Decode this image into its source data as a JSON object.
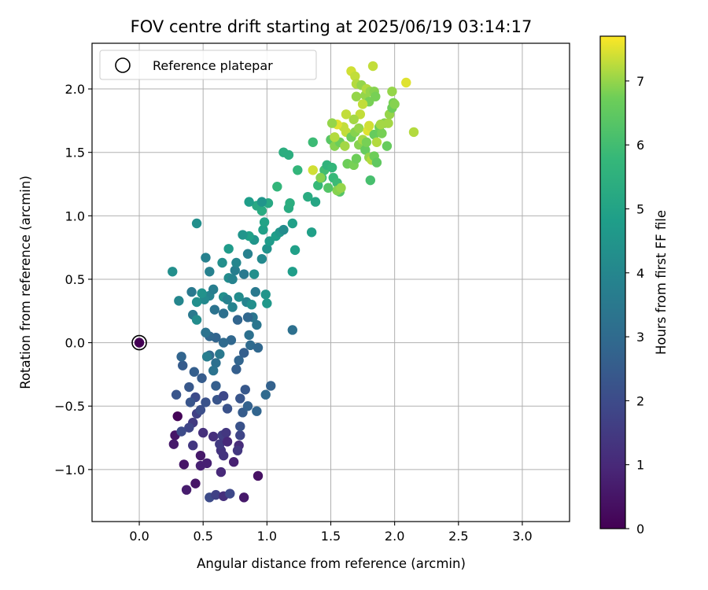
{
  "chart_data": {
    "type": "scatter",
    "title": "FOV centre drift starting at 2025/06/19 03:14:17",
    "xlabel": "Angular distance from reference (arcmin)",
    "ylabel": "Rotation from reference (arcmin)",
    "xlim": [
      -0.37,
      3.37
    ],
    "ylim": [
      -1.41,
      2.36
    ],
    "xticks": [
      0.0,
      0.5,
      1.0,
      1.5,
      2.0,
      2.5,
      3.0
    ],
    "xtick_labels": [
      "0.0",
      "0.5",
      "1.0",
      "1.5",
      "2.0",
      "2.5",
      "3.0"
    ],
    "yticks": [
      -1.0,
      -0.5,
      0.0,
      0.5,
      1.0,
      1.5,
      2.0
    ],
    "ytick_labels": [
      "−1.0",
      "−0.5",
      "0.0",
      "0.5",
      "1.0",
      "1.5",
      "2.0"
    ],
    "grid": true,
    "legend": {
      "position": "top-left",
      "entries": [
        {
          "label": "Reference platepar",
          "marker": "open-circle"
        }
      ]
    },
    "reference_point": {
      "x": 0.0,
      "y": 0.0,
      "c": 0.0
    },
    "colorbar": {
      "label": "Hours from first FF file",
      "colormap": "viridis",
      "range": [
        0,
        7.7
      ],
      "ticks": [
        0,
        1,
        2,
        3,
        4,
        5,
        6,
        7
      ],
      "tick_labels": [
        "0",
        "1",
        "2",
        "3",
        "4",
        "5",
        "6",
        "7"
      ]
    },
    "points": [
      [
        0.3,
        -0.58,
        0.1
      ],
      [
        0.28,
        -0.73,
        0.5
      ],
      [
        0.27,
        -0.8,
        0.6
      ],
      [
        0.35,
        -0.96,
        0.5
      ],
      [
        0.37,
        -1.16,
        0.7
      ],
      [
        0.44,
        -1.11,
        0.5
      ],
      [
        0.48,
        -0.97,
        0.8
      ],
      [
        0.48,
        -0.89,
        0.6
      ],
      [
        0.53,
        -0.95,
        0.8
      ],
      [
        0.55,
        -1.22,
        2.0
      ],
      [
        0.6,
        -1.2,
        1.7
      ],
      [
        0.64,
        -1.02,
        1.0
      ],
      [
        0.66,
        -1.21,
        1.2
      ],
      [
        0.71,
        -1.19,
        1.9
      ],
      [
        0.82,
        -1.22,
        0.6
      ],
      [
        0.93,
        -1.05,
        0.4
      ],
      [
        0.74,
        -0.94,
        0.8
      ],
      [
        0.78,
        -0.81,
        1.1
      ],
      [
        0.64,
        -0.85,
        1.3
      ],
      [
        0.58,
        -0.74,
        1.2
      ],
      [
        0.5,
        -0.71,
        1.2
      ],
      [
        0.42,
        -0.63,
        1.5
      ],
      [
        0.45,
        -0.56,
        1.7
      ],
      [
        0.39,
        -0.67,
        1.8
      ],
      [
        0.33,
        -0.7,
        2.0
      ],
      [
        0.42,
        -0.81,
        1.4
      ],
      [
        0.44,
        -0.43,
        2.0
      ],
      [
        0.48,
        -0.53,
        2.1
      ],
      [
        0.52,
        -0.47,
        2.2
      ],
      [
        0.4,
        -0.47,
        2.3
      ],
      [
        0.29,
        -0.41,
        2.3
      ],
      [
        0.39,
        -0.35,
        2.4
      ],
      [
        0.43,
        -0.23,
        2.6
      ],
      [
        0.34,
        -0.18,
        2.5
      ],
      [
        0.33,
        -0.11,
        2.8
      ],
      [
        0.49,
        -0.28,
        2.5
      ],
      [
        0.6,
        -0.34,
        2.6
      ],
      [
        0.61,
        -0.45,
        2.3
      ],
      [
        0.66,
        -0.42,
        1.9
      ],
      [
        0.69,
        -0.52,
        2.2
      ],
      [
        0.65,
        -0.73,
        1.6
      ],
      [
        0.63,
        -0.8,
        1.5
      ],
      [
        0.68,
        -0.71,
        1.4
      ],
      [
        0.66,
        -0.89,
        1.3
      ],
      [
        0.69,
        -0.78,
        1.0
      ],
      [
        0.77,
        -0.85,
        1.4
      ],
      [
        0.79,
        -0.73,
        1.8
      ],
      [
        0.79,
        -0.66,
        2.2
      ],
      [
        0.81,
        -0.55,
        2.5
      ],
      [
        0.83,
        -0.37,
        2.4
      ],
      [
        0.85,
        -0.5,
        2.7
      ],
      [
        0.92,
        -0.54,
        2.8
      ],
      [
        0.99,
        -0.41,
        3.0
      ],
      [
        1.03,
        -0.34,
        2.7
      ],
      [
        0.79,
        -0.44,
        2.3
      ],
      [
        0.76,
        -0.21,
        2.6
      ],
      [
        0.78,
        -0.14,
        2.8
      ],
      [
        0.82,
        -0.08,
        2.6
      ],
      [
        0.87,
        -0.02,
        3.0
      ],
      [
        0.93,
        -0.04,
        2.9
      ],
      [
        0.86,
        0.06,
        3.2
      ],
      [
        0.92,
        0.14,
        3.4
      ],
      [
        0.89,
        0.2,
        3.4
      ],
      [
        0.85,
        0.2,
        2.9
      ],
      [
        0.77,
        0.18,
        2.8
      ],
      [
        0.72,
        0.02,
        2.9
      ],
      [
        0.66,
        0.0,
        3.0
      ],
      [
        0.6,
        0.04,
        2.8
      ],
      [
        0.55,
        0.05,
        2.9
      ],
      [
        0.52,
        0.08,
        3.3
      ],
      [
        0.55,
        -0.1,
        3.0
      ],
      [
        0.6,
        -0.16,
        3.2
      ],
      [
        0.58,
        -0.22,
        3.3
      ],
      [
        0.53,
        -0.11,
        3.7
      ],
      [
        0.63,
        -0.09,
        3.5
      ],
      [
        0.66,
        0.23,
        3.2
      ],
      [
        0.59,
        0.26,
        3.3
      ],
      [
        0.55,
        0.37,
        3.9
      ],
      [
        0.51,
        0.34,
        4.1
      ],
      [
        0.49,
        0.39,
        4.4
      ],
      [
        0.45,
        0.32,
        4.3
      ],
      [
        0.42,
        0.22,
        3.5
      ],
      [
        0.45,
        0.18,
        4.2
      ],
      [
        0.41,
        0.4,
        3.5
      ],
      [
        0.31,
        0.33,
        4.0
      ],
      [
        0.26,
        0.56,
        4.3
      ],
      [
        0.55,
        0.56,
        3.8
      ],
      [
        0.58,
        0.42,
        3.7
      ],
      [
        0.66,
        0.36,
        4.3
      ],
      [
        0.69,
        0.34,
        3.8
      ],
      [
        0.73,
        0.28,
        3.9
      ],
      [
        0.78,
        0.36,
        4.2
      ],
      [
        0.84,
        0.32,
        3.9
      ],
      [
        0.88,
        0.3,
        4.3
      ],
      [
        0.91,
        0.4,
        3.5
      ],
      [
        0.99,
        0.38,
        4.5
      ],
      [
        1.0,
        0.31,
        4.6
      ],
      [
        0.7,
        0.51,
        4.2
      ],
      [
        0.73,
        0.5,
        3.9
      ],
      [
        0.75,
        0.57,
        3.7
      ],
      [
        0.82,
        0.54,
        3.5
      ],
      [
        0.9,
        0.54,
        4.3
      ],
      [
        0.65,
        0.63,
        4.3
      ],
      [
        0.7,
        0.74,
        4.7
      ],
      [
        0.76,
        0.63,
        4.0
      ],
      [
        0.85,
        0.7,
        3.8
      ],
      [
        0.52,
        0.67,
        3.8
      ],
      [
        0.45,
        0.94,
        4.3
      ],
      [
        0.9,
        0.81,
        4.5
      ],
      [
        0.96,
        0.66,
        4.1
      ],
      [
        1.0,
        0.74,
        4.4
      ],
      [
        1.02,
        0.8,
        4.7
      ],
      [
        0.86,
        0.84,
        4.9
      ],
      [
        0.81,
        0.85,
        4.5
      ],
      [
        0.97,
        0.89,
        4.9
      ],
      [
        1.07,
        0.84,
        4.8
      ],
      [
        1.1,
        0.87,
        4.6
      ],
      [
        1.13,
        0.89,
        4.2
      ],
      [
        1.2,
        0.94,
        4.9
      ],
      [
        1.22,
        0.73,
        4.9
      ],
      [
        1.2,
        0.56,
        4.8
      ],
      [
        1.2,
        0.1,
        3.2
      ],
      [
        0.98,
        0.95,
        5.0
      ],
      [
        1.01,
        1.1,
        5.2
      ],
      [
        0.96,
        1.04,
        5.3
      ],
      [
        0.92,
        1.08,
        5.2
      ],
      [
        0.86,
        1.11,
        4.8
      ],
      [
        0.96,
        1.11,
        4.5
      ],
      [
        1.17,
        1.06,
        5.3
      ],
      [
        1.18,
        1.1,
        5.4
      ],
      [
        1.08,
        1.23,
        5.7
      ],
      [
        1.13,
        1.5,
        5.4
      ],
      [
        1.17,
        1.48,
        5.4
      ],
      [
        1.24,
        1.36,
        5.7
      ],
      [
        1.32,
        1.15,
        5.3
      ],
      [
        1.36,
        1.58,
        5.9
      ],
      [
        1.38,
        1.11,
        5.1
      ],
      [
        1.35,
        0.87,
        4.9
      ],
      [
        1.4,
        1.24,
        5.8
      ],
      [
        1.43,
        1.3,
        5.8
      ],
      [
        1.45,
        1.36,
        6.0
      ],
      [
        1.47,
        1.4,
        5.6
      ],
      [
        1.51,
        1.38,
        5.7
      ],
      [
        1.52,
        1.3,
        5.8
      ],
      [
        1.55,
        1.26,
        5.9
      ],
      [
        1.57,
        1.19,
        6.3
      ],
      [
        1.55,
        1.2,
        6.9
      ],
      [
        1.58,
        1.22,
        7.0
      ],
      [
        1.48,
        1.22,
        6.3
      ],
      [
        1.5,
        1.6,
        6.4
      ],
      [
        1.53,
        1.55,
        6.9
      ],
      [
        1.57,
        1.58,
        6.7
      ],
      [
        1.61,
        1.55,
        7.1
      ],
      [
        1.63,
        1.41,
        6.7
      ],
      [
        1.68,
        1.4,
        6.8
      ],
      [
        1.7,
        1.45,
        6.7
      ],
      [
        1.72,
        1.56,
        6.9
      ],
      [
        1.77,
        1.52,
        6.6
      ],
      [
        1.8,
        1.46,
        7.0
      ],
      [
        1.82,
        1.44,
        7.2
      ],
      [
        1.84,
        1.47,
        6.7
      ],
      [
        1.86,
        1.42,
        6.5
      ],
      [
        1.81,
        1.28,
        6.1
      ],
      [
        1.6,
        1.7,
        7.3
      ],
      [
        1.62,
        1.66,
        7.3
      ],
      [
        1.66,
        1.62,
        6.7
      ],
      [
        1.69,
        1.66,
        6.9
      ],
      [
        1.72,
        1.69,
        7.0
      ],
      [
        1.75,
        1.6,
        7.1
      ],
      [
        1.78,
        1.58,
        6.8
      ],
      [
        1.79,
        1.67,
        7.5
      ],
      [
        1.8,
        1.71,
        7.4
      ],
      [
        1.84,
        1.64,
        6.6
      ],
      [
        1.86,
        1.58,
        7.2
      ],
      [
        1.88,
        1.7,
        6.7
      ],
      [
        1.9,
        1.65,
        6.8
      ],
      [
        1.92,
        1.73,
        6.9
      ],
      [
        1.94,
        1.55,
        6.6
      ],
      [
        1.95,
        1.73,
        7.1
      ],
      [
        1.96,
        1.8,
        7.0
      ],
      [
        1.98,
        1.85,
        6.7
      ],
      [
        1.99,
        1.89,
        6.8
      ],
      [
        2.0,
        1.88,
        6.9
      ],
      [
        1.98,
        1.98,
        7.0
      ],
      [
        2.09,
        2.05,
        7.5
      ],
      [
        2.15,
        1.66,
        7.2
      ],
      [
        1.83,
        2.18,
        7.3
      ],
      [
        1.66,
        2.14,
        7.4
      ],
      [
        1.69,
        2.1,
        7.3
      ],
      [
        1.7,
        2.04,
        7.2
      ],
      [
        1.74,
        2.03,
        7.0
      ],
      [
        1.77,
        1.95,
        7.0
      ],
      [
        1.78,
        2.0,
        7.2
      ],
      [
        1.81,
        1.98,
        7.0
      ],
      [
        1.84,
        1.98,
        6.9
      ],
      [
        1.85,
        1.94,
        6.8
      ],
      [
        1.8,
        1.9,
        6.8
      ],
      [
        1.75,
        1.88,
        7.3
      ],
      [
        1.7,
        1.94,
        7.0
      ],
      [
        1.73,
        1.8,
        7.3
      ],
      [
        1.68,
        1.76,
        7.1
      ],
      [
        1.62,
        1.8,
        7.3
      ],
      [
        1.55,
        1.72,
        7.5
      ],
      [
        1.51,
        1.73,
        7.0
      ],
      [
        1.53,
        1.62,
        7.2
      ],
      [
        1.89,
        1.72,
        7.1
      ],
      [
        1.36,
        1.36,
        7.4
      ],
      [
        1.42,
        1.3,
        6.9
      ]
    ]
  }
}
